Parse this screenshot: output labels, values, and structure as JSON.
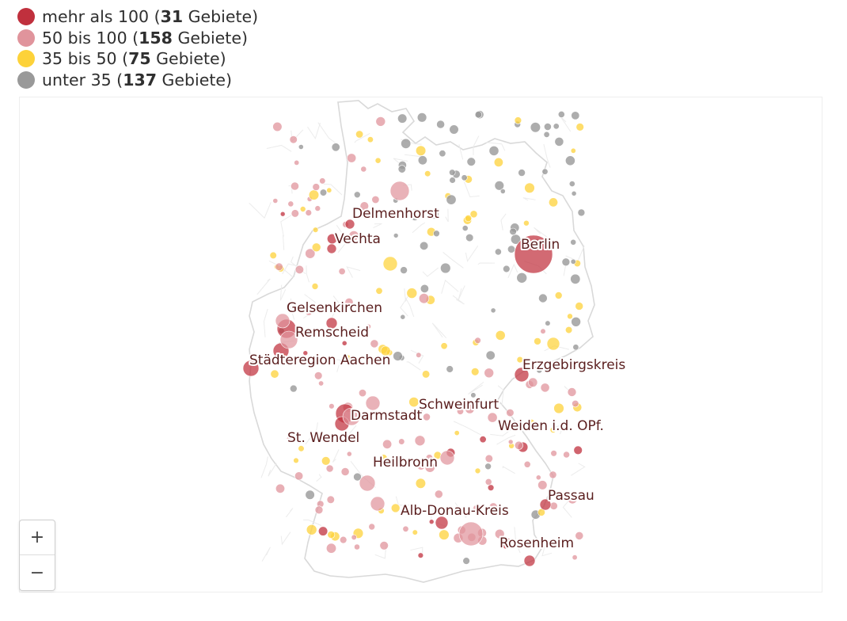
{
  "legend": {
    "items": [
      {
        "prefix": "mehr als 100 (",
        "count": "31",
        "suffix": " Gebiete)",
        "color": "#c0303d"
      },
      {
        "prefix": "50 bis 100 (",
        "count": "158",
        "suffix": " Gebiete)",
        "color": "#e0949c"
      },
      {
        "prefix": "35 bis 50 (",
        "count": "75",
        "suffix": " Gebiete)",
        "color": "#fdd239"
      },
      {
        "prefix": "unter 35 (",
        "count": "137",
        "suffix": " Gebiete)",
        "color": "#999999"
      }
    ]
  },
  "map": {
    "labels": [
      "Delmenhorst",
      "Vechta",
      "Berlin",
      "Gelsenkirchen",
      "Remscheid",
      "Städteregion Aachen",
      "Erzgebirgskreis",
      "Schweinfurt",
      "Darmstadt",
      "Weiden i.d. OPf.",
      "St. Wendel",
      "Heilbronn",
      "Passau",
      "Alb-Donau-Kreis",
      "Rosenheim"
    ]
  },
  "zoom": {
    "in_label": "+",
    "out_label": "−"
  }
}
